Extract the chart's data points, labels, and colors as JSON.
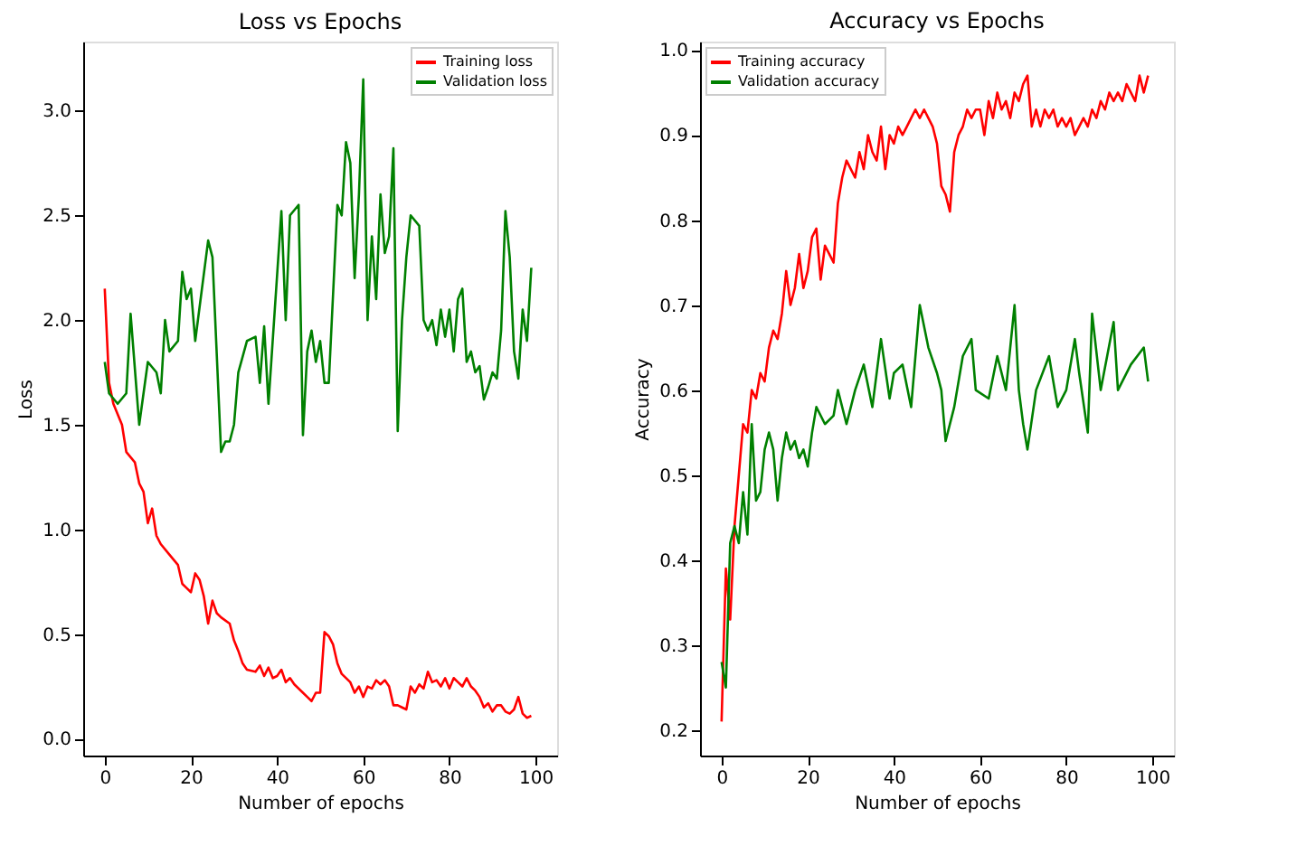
{
  "chart_data": [
    {
      "type": "line",
      "title": "Loss vs Epochs",
      "xlabel": "Number of epochs",
      "ylabel": "Loss",
      "xlim": [
        -5,
        105
      ],
      "ylim": [
        -0.08,
        3.33
      ],
      "xticks": [
        0,
        20,
        40,
        60,
        80,
        100
      ],
      "yticks": [
        {
          "value": 0,
          "label": "0.0"
        },
        {
          "value": 0.5,
          "label": "0.5"
        },
        {
          "value": 1,
          "label": "1.0"
        },
        {
          "value": 1.5,
          "label": "1.5"
        },
        {
          "value": 2,
          "label": "2.0"
        },
        {
          "value": 2.5,
          "label": "2.5"
        },
        {
          "value": 3,
          "label": "3.0"
        }
      ],
      "grid": false,
      "legend": "top right",
      "marker": "none",
      "line_style": "solid",
      "series": [
        {
          "name": "Training loss",
          "color": "#ff0000",
          "x": [
            0,
            1,
            2,
            4,
            5,
            7,
            8,
            9,
            10,
            11,
            12,
            13,
            15,
            17,
            18,
            19,
            20,
            21,
            22,
            23,
            24,
            25,
            26,
            27,
            29,
            30,
            31,
            32,
            33,
            35,
            36,
            37,
            38,
            39,
            40,
            41,
            42,
            43,
            44,
            46,
            47,
            48,
            49,
            50,
            51,
            52,
            53,
            54,
            55,
            57,
            58,
            59,
            60,
            61,
            62,
            63,
            64,
            65,
            66,
            67,
            68,
            69,
            70,
            71,
            72,
            73,
            74,
            75,
            76,
            77,
            78,
            79,
            80,
            81,
            82,
            83,
            84,
            85,
            86,
            87,
            88,
            89,
            90,
            91,
            92,
            93,
            94,
            95,
            96,
            97,
            98,
            99
          ],
          "values": [
            2.15,
            1.7,
            1.6,
            1.5,
            1.37,
            1.32,
            1.22,
            1.18,
            1.03,
            1.1,
            0.97,
            0.93,
            0.88,
            0.83,
            0.74,
            0.72,
            0.7,
            0.79,
            0.76,
            0.68,
            0.55,
            0.66,
            0.6,
            0.58,
            0.55,
            0.47,
            0.42,
            0.36,
            0.33,
            0.32,
            0.35,
            0.3,
            0.34,
            0.29,
            0.3,
            0.33,
            0.27,
            0.29,
            0.26,
            0.22,
            0.2,
            0.18,
            0.22,
            0.22,
            0.51,
            0.49,
            0.45,
            0.36,
            0.31,
            0.27,
            0.22,
            0.25,
            0.2,
            0.25,
            0.24,
            0.28,
            0.26,
            0.28,
            0.25,
            0.16,
            0.16,
            0.15,
            0.14,
            0.25,
            0.22,
            0.26,
            0.24,
            0.32,
            0.27,
            0.28,
            0.25,
            0.29,
            0.24,
            0.29,
            0.27,
            0.25,
            0.29,
            0.25,
            0.23,
            0.2,
            0.15,
            0.17,
            0.13,
            0.16,
            0.16,
            0.13,
            0.12,
            0.14,
            0.2,
            0.12,
            0.1,
            0.11
          ]
        },
        {
          "name": "Validation loss",
          "color": "#008000",
          "x": [
            0,
            1,
            3,
            5,
            6,
            8,
            10,
            12,
            13,
            14,
            15,
            17,
            18,
            19,
            20,
            21,
            24,
            25,
            27,
            28,
            29,
            30,
            31,
            33,
            35,
            36,
            37,
            38,
            41,
            42,
            43,
            45,
            46,
            47,
            48,
            49,
            50,
            51,
            52,
            54,
            55,
            56,
            57,
            58,
            59,
            60,
            61,
            62,
            63,
            64,
            65,
            66,
            67,
            68,
            69,
            70,
            71,
            73,
            74,
            75,
            76,
            77,
            78,
            79,
            80,
            81,
            82,
            83,
            84,
            85,
            86,
            87,
            88,
            89,
            90,
            91,
            92,
            93,
            94,
            95,
            96,
            97,
            98,
            99
          ],
          "values": [
            1.8,
            1.65,
            1.6,
            1.65,
            2.03,
            1.5,
            1.8,
            1.75,
            1.65,
            2.0,
            1.85,
            1.9,
            2.23,
            2.1,
            2.15,
            1.9,
            2.38,
            2.3,
            1.37,
            1.42,
            1.42,
            1.5,
            1.75,
            1.9,
            1.92,
            1.7,
            1.97,
            1.6,
            2.52,
            2.0,
            2.5,
            2.55,
            1.45,
            1.85,
            1.95,
            1.8,
            1.9,
            1.7,
            1.7,
            2.55,
            2.5,
            2.85,
            2.75,
            2.2,
            2.6,
            3.15,
            2.0,
            2.4,
            2.1,
            2.6,
            2.32,
            2.4,
            2.82,
            1.47,
            2.0,
            2.3,
            2.5,
            2.45,
            2.0,
            1.95,
            2.0,
            1.88,
            2.05,
            1.92,
            2.05,
            1.85,
            2.1,
            2.15,
            1.8,
            1.85,
            1.75,
            1.78,
            1.62,
            1.68,
            1.75,
            1.72,
            1.95,
            2.52,
            2.3,
            1.85,
            1.72,
            2.05,
            1.9,
            2.25
          ]
        }
      ]
    },
    {
      "type": "line",
      "title": "Accuracy vs Epochs",
      "xlabel": "Number of epochs",
      "ylabel": "Accuracy",
      "xlim": [
        -5,
        105
      ],
      "ylim": [
        0.17,
        1.01
      ],
      "xticks": [
        0,
        20,
        40,
        60,
        80,
        100
      ],
      "yticks": [
        {
          "value": 0.2,
          "label": "0.2"
        },
        {
          "value": 0.3,
          "label": "0.3"
        },
        {
          "value": 0.4,
          "label": "0.4"
        },
        {
          "value": 0.5,
          "label": "0.5"
        },
        {
          "value": 0.6,
          "label": "0.6"
        },
        {
          "value": 0.7,
          "label": "0.7"
        },
        {
          "value": 0.8,
          "label": "0.8"
        },
        {
          "value": 0.9,
          "label": "0.9"
        },
        {
          "value": 1,
          "label": "1.0"
        }
      ],
      "grid": false,
      "legend": "top left",
      "marker": "none",
      "line_style": "solid",
      "series": [
        {
          "name": "Training accuracy",
          "color": "#ff0000",
          "x": [
            0,
            1,
            2,
            3,
            4,
            5,
            6,
            7,
            8,
            9,
            10,
            11,
            12,
            13,
            14,
            15,
            16,
            17,
            18,
            19,
            20,
            21,
            22,
            23,
            24,
            25,
            26,
            27,
            28,
            29,
            30,
            31,
            32,
            33,
            34,
            35,
            36,
            37,
            38,
            39,
            40,
            41,
            42,
            43,
            44,
            45,
            46,
            47,
            48,
            49,
            50,
            51,
            52,
            53,
            54,
            55,
            56,
            57,
            58,
            59,
            60,
            61,
            62,
            63,
            64,
            65,
            66,
            67,
            68,
            69,
            70,
            71,
            72,
            73,
            74,
            75,
            76,
            77,
            78,
            79,
            80,
            81,
            82,
            83,
            84,
            85,
            86,
            87,
            88,
            89,
            90,
            91,
            92,
            93,
            94,
            95,
            96,
            97,
            98,
            99
          ],
          "values": [
            0.21,
            0.39,
            0.33,
            0.44,
            0.5,
            0.56,
            0.55,
            0.6,
            0.59,
            0.62,
            0.61,
            0.65,
            0.67,
            0.66,
            0.69,
            0.74,
            0.7,
            0.72,
            0.76,
            0.72,
            0.74,
            0.78,
            0.79,
            0.73,
            0.77,
            0.76,
            0.75,
            0.82,
            0.85,
            0.87,
            0.86,
            0.85,
            0.88,
            0.86,
            0.9,
            0.88,
            0.87,
            0.91,
            0.86,
            0.9,
            0.89,
            0.91,
            0.9,
            0.91,
            0.92,
            0.93,
            0.92,
            0.93,
            0.92,
            0.91,
            0.89,
            0.84,
            0.83,
            0.81,
            0.88,
            0.9,
            0.91,
            0.93,
            0.92,
            0.93,
            0.93,
            0.9,
            0.94,
            0.92,
            0.95,
            0.93,
            0.94,
            0.92,
            0.95,
            0.94,
            0.96,
            0.97,
            0.91,
            0.93,
            0.91,
            0.93,
            0.92,
            0.93,
            0.91,
            0.92,
            0.91,
            0.92,
            0.9,
            0.91,
            0.92,
            0.91,
            0.93,
            0.92,
            0.94,
            0.93,
            0.95,
            0.94,
            0.95,
            0.94,
            0.96,
            0.95,
            0.94,
            0.97,
            0.95,
            0.97
          ]
        },
        {
          "name": "Validation accuracy",
          "color": "#008000",
          "x": [
            0,
            1,
            2,
            3,
            4,
            5,
            6,
            7,
            8,
            9,
            10,
            11,
            12,
            13,
            14,
            15,
            16,
            17,
            18,
            19,
            20,
            21,
            22,
            24,
            26,
            27,
            29,
            31,
            33,
            35,
            37,
            39,
            40,
            42,
            44,
            46,
            48,
            50,
            51,
            52,
            54,
            56,
            58,
            59,
            62,
            64,
            66,
            68,
            69,
            70,
            71,
            73,
            76,
            78,
            80,
            82,
            83,
            85,
            86,
            88,
            91,
            92,
            95,
            98,
            99
          ],
          "values": [
            0.28,
            0.25,
            0.42,
            0.44,
            0.42,
            0.48,
            0.43,
            0.56,
            0.47,
            0.48,
            0.53,
            0.55,
            0.53,
            0.47,
            0.52,
            0.55,
            0.53,
            0.54,
            0.52,
            0.53,
            0.51,
            0.55,
            0.58,
            0.56,
            0.57,
            0.6,
            0.56,
            0.6,
            0.63,
            0.58,
            0.66,
            0.59,
            0.62,
            0.63,
            0.58,
            0.7,
            0.65,
            0.62,
            0.6,
            0.54,
            0.58,
            0.64,
            0.66,
            0.6,
            0.59,
            0.64,
            0.6,
            0.7,
            0.6,
            0.56,
            0.53,
            0.6,
            0.64,
            0.58,
            0.6,
            0.66,
            0.62,
            0.55,
            0.69,
            0.6,
            0.68,
            0.6,
            0.63,
            0.65,
            0.61
          ]
        }
      ]
    }
  ]
}
